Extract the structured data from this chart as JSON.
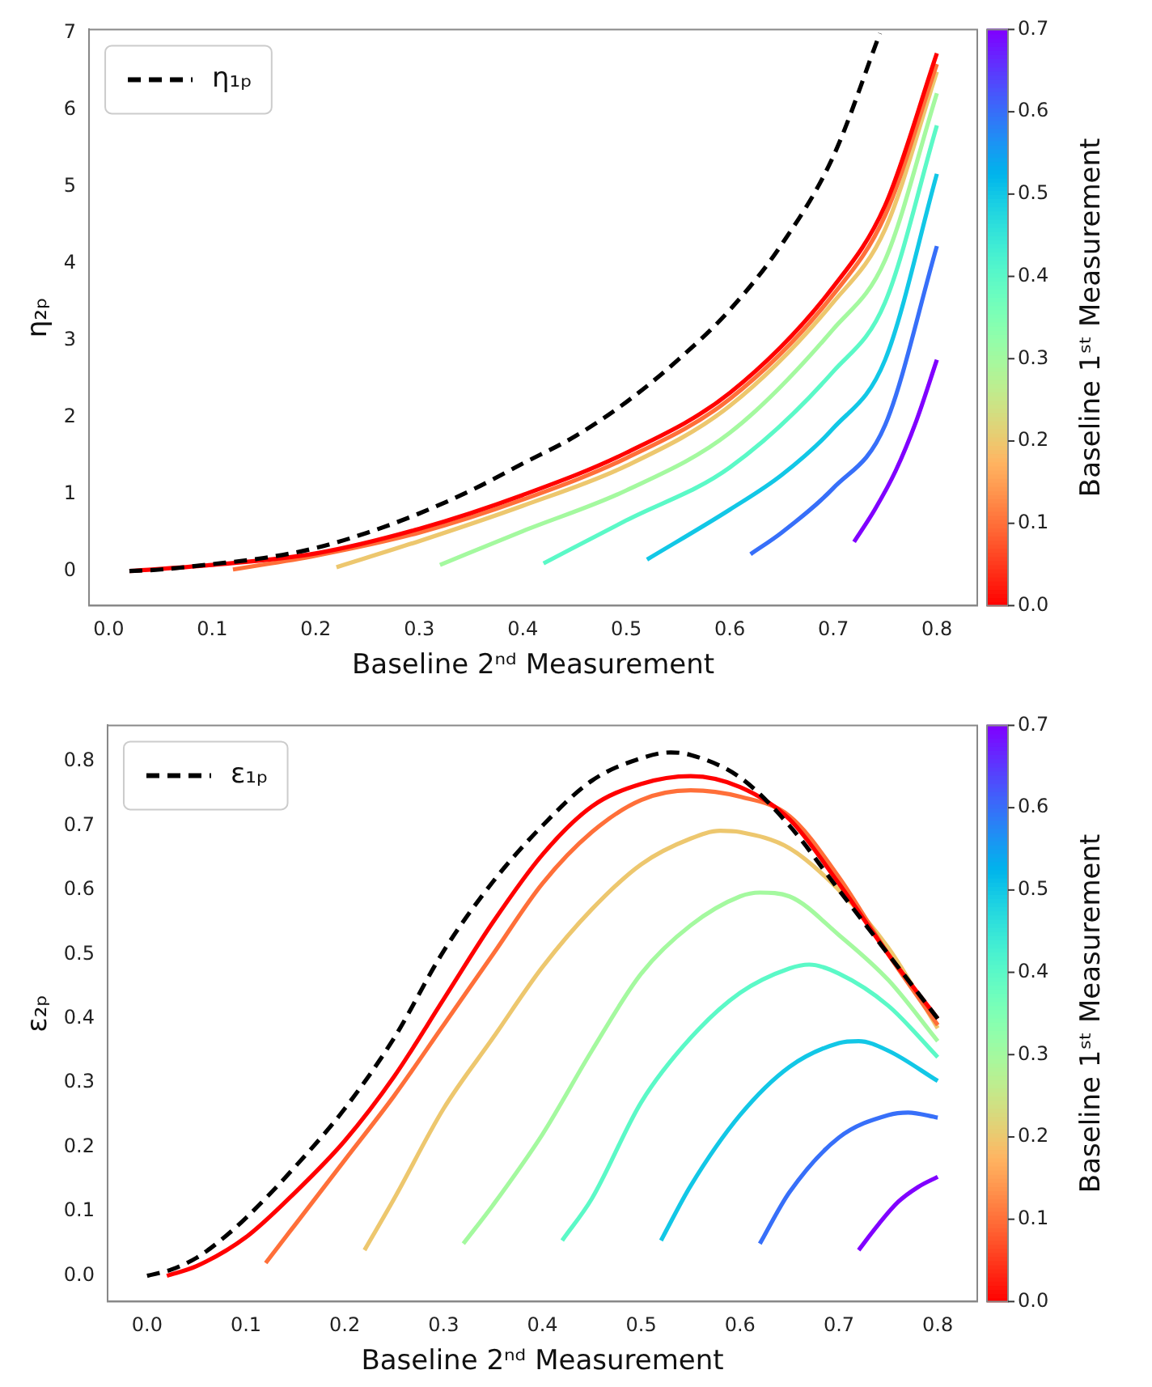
{
  "chart_data": [
    {
      "type": "line",
      "xlabel": "Baseline 2ⁿᵈ Measurement",
      "ylabel": "η₂ₚ",
      "clabel": "Baseline 1ˢᵗ Measurement",
      "clim": [
        0,
        0.7
      ],
      "cticks": [
        {
          "value": 0,
          "label": "0.0"
        },
        0.1,
        0.2,
        0.3,
        0.4,
        0.5,
        0.6,
        0.7
      ],
      "xlim": [
        -0.019,
        0.839
      ],
      "ylim": [
        -0.45,
        7.05
      ],
      "xticks": [
        {
          "value": 0,
          "label": "0.0"
        },
        0.1,
        0.2,
        0.3,
        0.4,
        0.5,
        0.6,
        0.7,
        0.8
      ],
      "yticks": [
        0,
        1,
        2,
        3,
        4,
        5,
        6,
        7
      ],
      "legend": "top left",
      "series": [
        {
          "name": "η₁ₚ",
          "color": "#000000",
          "line_style": "dashed",
          "x": [
            0.02,
            0.05,
            0.1,
            0.15,
            0.2,
            0.25,
            0.3,
            0.35,
            0.4,
            0.45,
            0.5,
            0.55,
            0.6,
            0.65,
            0.7,
            0.745
          ],
          "values": [
            0,
            0.02,
            0.09,
            0.17,
            0.3,
            0.5,
            0.75,
            1.05,
            1.4,
            1.75,
            2.2,
            2.75,
            3.4,
            4.25,
            5.4,
            7.0
          ]
        },
        {
          "color": "#ff0000",
          "x": [
            0.02,
            0.1,
            0.2,
            0.3,
            0.4,
            0.5,
            0.6,
            0.7,
            0.75,
            0.8
          ],
          "values": [
            0,
            0.08,
            0.23,
            0.55,
            0.99,
            1.54,
            2.32,
            3.7,
            4.76,
            6.74
          ]
        },
        {
          "color": "#ff6f39",
          "x": [
            0.12,
            0.2,
            0.3,
            0.4,
            0.5,
            0.6,
            0.7,
            0.75,
            0.8
          ],
          "values": [
            0.02,
            0.2,
            0.5,
            0.93,
            1.47,
            2.24,
            3.6,
            4.63,
            6.6
          ]
        },
        {
          "color": "#edc76e",
          "x": [
            0.22,
            0.3,
            0.4,
            0.5,
            0.6,
            0.7,
            0.75,
            0.8
          ],
          "values": [
            0.05,
            0.39,
            0.85,
            1.37,
            2.15,
            3.5,
            4.45,
            6.5
          ]
        },
        {
          "color": "#a4f99f",
          "x": [
            0.32,
            0.4,
            0.5,
            0.6,
            0.7,
            0.75,
            0.8
          ],
          "values": [
            0.08,
            0.52,
            1.05,
            1.8,
            3.15,
            4.05,
            6.22
          ]
        },
        {
          "color": "#5bf9c7",
          "x": [
            0.42,
            0.5,
            0.6,
            0.7,
            0.75,
            0.8
          ],
          "values": [
            0.1,
            0.66,
            1.35,
            2.6,
            3.5,
            5.8
          ]
        },
        {
          "color": "#12c7e6",
          "x": [
            0.52,
            0.6,
            0.65,
            0.7,
            0.75,
            0.8
          ],
          "values": [
            0.15,
            0.8,
            1.25,
            1.86,
            2.75,
            5.17
          ]
        },
        {
          "color": "#376ff9",
          "x": [
            0.62,
            0.65,
            0.7,
            0.75,
            0.8
          ],
          "values": [
            0.22,
            0.5,
            1.08,
            1.9,
            4.23
          ]
        },
        {
          "color": "#8000ff",
          "x": [
            0.72,
            0.74,
            0.76,
            0.78,
            0.8
          ],
          "values": [
            0.38,
            0.8,
            1.3,
            1.95,
            2.75
          ]
        }
      ]
    },
    {
      "type": "line",
      "xlabel": "Baseline 2ⁿᵈ Measurement",
      "ylabel": "ε₂ₚ",
      "clabel": "Baseline 1ˢᵗ Measurement",
      "clim": [
        0,
        0.7
      ],
      "cticks": [
        {
          "value": 0,
          "label": "0.0"
        },
        0.1,
        0.2,
        0.3,
        0.4,
        0.5,
        0.6,
        0.7
      ],
      "xlim": [
        -0.04,
        0.84
      ],
      "ylim": [
        -0.04,
        0.856
      ],
      "xticks": [
        {
          "value": 0,
          "label": "0.0"
        },
        0.1,
        0.2,
        0.3,
        0.4,
        0.5,
        0.6,
        0.7,
        0.8
      ],
      "yticks": [
        {
          "value": 0,
          "label": "0.0"
        },
        0.1,
        0.2,
        0.3,
        0.4,
        0.5,
        0.6,
        0.7,
        0.8
      ],
      "legend": "top left",
      "series": [
        {
          "name": "ε₁ₚ",
          "color": "#000000",
          "line_style": "dashed",
          "x": [
            0,
            0.025,
            0.05,
            0.075,
            0.1,
            0.15,
            0.2,
            0.25,
            0.3,
            0.35,
            0.4,
            0.45,
            0.5,
            0.53,
            0.55,
            0.6,
            0.65,
            0.7,
            0.75,
            0.8
          ],
          "values": [
            0,
            0.01,
            0.028,
            0.056,
            0.09,
            0.17,
            0.26,
            0.37,
            0.505,
            0.613,
            0.7,
            0.77,
            0.805,
            0.814,
            0.81,
            0.775,
            0.7,
            0.6,
            0.5,
            0.4
          ]
        },
        {
          "color": "#ff0000",
          "x": [
            0.02,
            0.05,
            0.1,
            0.15,
            0.2,
            0.25,
            0.3,
            0.35,
            0.4,
            0.45,
            0.5,
            0.55,
            0.6,
            0.65,
            0.7,
            0.75,
            0.8
          ],
          "values": [
            0,
            0.015,
            0.06,
            0.13,
            0.21,
            0.31,
            0.43,
            0.55,
            0.655,
            0.73,
            0.765,
            0.777,
            0.76,
            0.71,
            0.61,
            0.5,
            0.4
          ]
        },
        {
          "color": "#ff6f39",
          "x": [
            0.12,
            0.15,
            0.2,
            0.25,
            0.3,
            0.35,
            0.4,
            0.45,
            0.5,
            0.55,
            0.6,
            0.65,
            0.7,
            0.75,
            0.8
          ],
          "values": [
            0.02,
            0.08,
            0.18,
            0.28,
            0.39,
            0.5,
            0.61,
            0.69,
            0.74,
            0.755,
            0.745,
            0.715,
            0.62,
            0.5,
            0.39
          ]
        },
        {
          "color": "#edc76e",
          "x": [
            0.22,
            0.25,
            0.3,
            0.35,
            0.4,
            0.45,
            0.5,
            0.55,
            0.58,
            0.6,
            0.65,
            0.7,
            0.75,
            0.8
          ],
          "values": [
            0.04,
            0.12,
            0.26,
            0.37,
            0.48,
            0.57,
            0.64,
            0.68,
            0.692,
            0.69,
            0.665,
            0.6,
            0.51,
            0.385
          ]
        },
        {
          "color": "#a4f99f",
          "x": [
            0.32,
            0.35,
            0.4,
            0.45,
            0.5,
            0.55,
            0.6,
            0.62,
            0.65,
            0.7,
            0.75,
            0.8
          ],
          "values": [
            0.05,
            0.11,
            0.22,
            0.35,
            0.47,
            0.545,
            0.59,
            0.596,
            0.59,
            0.53,
            0.46,
            0.365
          ]
        },
        {
          "color": "#5bf9c7",
          "x": [
            0.42,
            0.45,
            0.5,
            0.55,
            0.6,
            0.65,
            0.67,
            0.7,
            0.75,
            0.8
          ],
          "values": [
            0.055,
            0.12,
            0.27,
            0.37,
            0.44,
            0.478,
            0.484,
            0.47,
            0.42,
            0.34
          ]
        },
        {
          "color": "#12c7e6",
          "x": [
            0.52,
            0.55,
            0.6,
            0.65,
            0.7,
            0.72,
            0.75,
            0.8
          ],
          "values": [
            0.055,
            0.14,
            0.25,
            0.325,
            0.362,
            0.365,
            0.35,
            0.303
          ]
        },
        {
          "color": "#376ff9",
          "x": [
            0.62,
            0.65,
            0.7,
            0.75,
            0.77,
            0.8
          ],
          "values": [
            0.05,
            0.13,
            0.215,
            0.25,
            0.254,
            0.246
          ]
        },
        {
          "color": "#8000ff",
          "x": [
            0.72,
            0.74,
            0.76,
            0.78,
            0.8
          ],
          "values": [
            0.04,
            0.08,
            0.115,
            0.138,
            0.154
          ]
        }
      ]
    }
  ]
}
